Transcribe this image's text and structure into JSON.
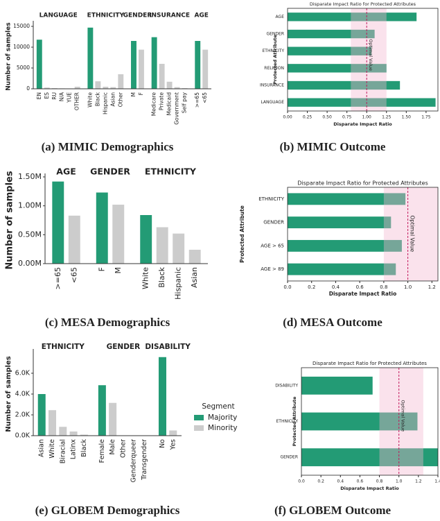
{
  "chart_data": [
    {
      "type": "bar",
      "caption": "(a) MIMIC Demographics",
      "y_label": "Number of samples",
      "ylim": [
        0,
        15500
      ],
      "yticks": [
        0,
        5000,
        10000,
        15000
      ],
      "groups": [
        {
          "name": "LANGUAGE",
          "categories": [
            "EN",
            "ES",
            "RU",
            "N/A",
            "YUE",
            "OTHER"
          ],
          "values": [
            11800,
            300,
            150,
            100,
            80,
            500
          ],
          "colors": [
            "#239b75",
            "#cccccc",
            "#cccccc",
            "#cccccc",
            "#cccccc",
            "#cccccc"
          ]
        },
        {
          "name": "ETHNICITY",
          "categories": [
            "White",
            "Black",
            "Hispanic",
            "Asian",
            "Other"
          ],
          "values": [
            14700,
            1800,
            500,
            400,
            3500
          ],
          "colors": [
            "#239b75",
            "#cccccc",
            "#cccccc",
            "#cccccc",
            "#cccccc"
          ]
        },
        {
          "name": "GENDER",
          "categories": [
            "M",
            "F"
          ],
          "values": [
            11500,
            9400
          ],
          "colors": [
            "#239b75",
            "#cccccc"
          ]
        },
        {
          "name": "INSURANCE",
          "categories": [
            "Medicare",
            "Private",
            "Medicaid",
            "Government",
            "Self pay"
          ],
          "values": [
            12400,
            6000,
            1700,
            400,
            150
          ],
          "colors": [
            "#239b75",
            "#cccccc",
            "#cccccc",
            "#cccccc",
            "#cccccc"
          ]
        },
        {
          "name": "AGE",
          "categories": [
            ">=65",
            "<65"
          ],
          "values": [
            11500,
            9400
          ],
          "colors": [
            "#239b75",
            "#cccccc"
          ]
        }
      ]
    },
    {
      "type": "barh",
      "caption": "(b) MIMIC Outcome",
      "title": "Disparate Impact Ratio for Protected Attributes",
      "x_label": "Disparate Impact Ratio",
      "y_label": "Protected Attribute",
      "categories": [
        "AGE",
        "GENDER",
        "ETHNICITY",
        "RELIGION",
        "INSURANCE",
        "LANGUAGE"
      ],
      "values": [
        1.63,
        1.1,
        1.06,
        1.25,
        1.42,
        1.87
      ],
      "color": "#239b75",
      "xlim": [
        0,
        1.9
      ],
      "xticks": [
        {
          "value": 0,
          "label": "0.00"
        },
        0.25,
        {
          "value": 0.5,
          "label": "0.50"
        },
        0.75,
        {
          "value": 1,
          "label": "1.00"
        },
        1.25,
        {
          "value": 1.5,
          "label": "1.50"
        },
        1.75
      ],
      "fair_range": [
        0.8,
        1.25
      ],
      "optimal": 1.0,
      "annotation": "Optimal Value",
      "band_color": "#f2b6d0",
      "line_color": "#c2185b"
    },
    {
      "type": "bar",
      "caption": "(c) MESA Demographics",
      "y_label": "Number of samples",
      "ylim": [
        0,
        1500000
      ],
      "yticks": [
        {
          "value": 0,
          "label": "0.00M"
        },
        {
          "value": 500000,
          "label": "0.50M"
        },
        {
          "value": 1000000,
          "label": "1.00M"
        },
        {
          "value": 1500000,
          "label": "1.50M"
        }
      ],
      "groups": [
        {
          "name": "AGE",
          "categories": [
            ">=65",
            "<65"
          ],
          "values": [
            1420000,
            830000
          ],
          "colors": [
            "#239b75",
            "#cccccc"
          ]
        },
        {
          "name": "GENDER",
          "categories": [
            "F",
            "M"
          ],
          "values": [
            1230000,
            1020000
          ],
          "colors": [
            "#239b75",
            "#cccccc"
          ]
        },
        {
          "name": "ETHNICITY",
          "categories": [
            "White",
            "Black",
            "Hispanic",
            "Asian"
          ],
          "values": [
            840000,
            630000,
            520000,
            240000
          ],
          "colors": [
            "#239b75",
            "#cccccc",
            "#cccccc",
            "#cccccc"
          ]
        }
      ]
    },
    {
      "type": "barh",
      "caption": "(d) MESA Outcome",
      "title": "Disparate Impact Ratio for Protected Attributes",
      "x_label": "Disparate Impact Ratio",
      "y_label": "Protected Attribute",
      "categories": [
        "ETHNICITY",
        "GENDER",
        "AGE > 65",
        "AGE > 89"
      ],
      "values": [
        0.98,
        0.86,
        0.95,
        0.9
      ],
      "color": "#239b75",
      "xlim": [
        0,
        1.25
      ],
      "xticks": [
        {
          "value": 0,
          "label": "0.0"
        },
        0.2,
        0.4,
        0.6,
        0.8,
        {
          "value": 1,
          "label": "1.0"
        },
        1.2
      ],
      "fair_range": [
        0.8,
        1.25
      ],
      "optimal": 1.0,
      "annotation": "Optimal Value",
      "band_color": "#f2b6d0",
      "line_color": "#c2185b"
    },
    {
      "type": "bar",
      "caption": "(e) GLOBEM Demographics",
      "y_label": "Number of samples",
      "ylim": [
        0,
        8000
      ],
      "yticks": [
        {
          "value": 0,
          "label": "0.0K"
        },
        {
          "value": 2000,
          "label": "2.0K"
        },
        {
          "value": 4000,
          "label": "4.0K"
        },
        {
          "value": 6000,
          "label": "6.0K"
        }
      ],
      "groups": [
        {
          "name": "ETHNICITY",
          "categories": [
            "Asian",
            "White",
            "Biracial",
            "Latinx",
            "Black"
          ],
          "values": [
            4000,
            2450,
            850,
            400,
            100
          ],
          "colors": [
            "#239b75",
            "#cccccc",
            "#cccccc",
            "#cccccc",
            "#cccccc"
          ]
        },
        {
          "name": "GENDER",
          "categories": [
            "Female",
            "Male",
            "Other",
            "Genderqueer",
            "Transgender"
          ],
          "values": [
            4850,
            3150,
            20,
            10,
            10
          ],
          "colors": [
            "#239b75",
            "#cccccc",
            "#cccccc",
            "#cccccc",
            "#cccccc"
          ]
        },
        {
          "name": "DISABILITY",
          "categories": [
            "No",
            "Yes"
          ],
          "values": [
            7550,
            500
          ],
          "colors": [
            "#239b75",
            "#cccccc"
          ]
        }
      ],
      "legend": {
        "title": "Segment",
        "entries": [
          {
            "name": "Majority",
            "color": "#239b75"
          },
          {
            "name": "Minority",
            "color": "#cccccc"
          }
        ]
      }
    },
    {
      "type": "barh",
      "caption": "(f) GLOBEM Outcome",
      "title": "Disparate Impact Ratio for Protected Attributes",
      "x_label": "Disparate Impact Ratio",
      "y_label": "Protected Attribute",
      "categories": [
        "DISABILITY",
        "ETHNICITY",
        "GENDER"
      ],
      "values": [
        0.73,
        1.19,
        1.4
      ],
      "color": "#239b75",
      "xlim": [
        0,
        1.4
      ],
      "xticks": [
        {
          "value": 0,
          "label": "0.0"
        },
        0.2,
        0.4,
        0.6,
        0.8,
        {
          "value": 1,
          "label": "1.0"
        },
        1.2,
        1.4
      ],
      "fair_range": [
        0.8,
        1.25
      ],
      "optimal": 1.0,
      "annotation": "Optimal Value",
      "band_color": "#f2b6d0",
      "line_color": "#c2185b"
    }
  ]
}
